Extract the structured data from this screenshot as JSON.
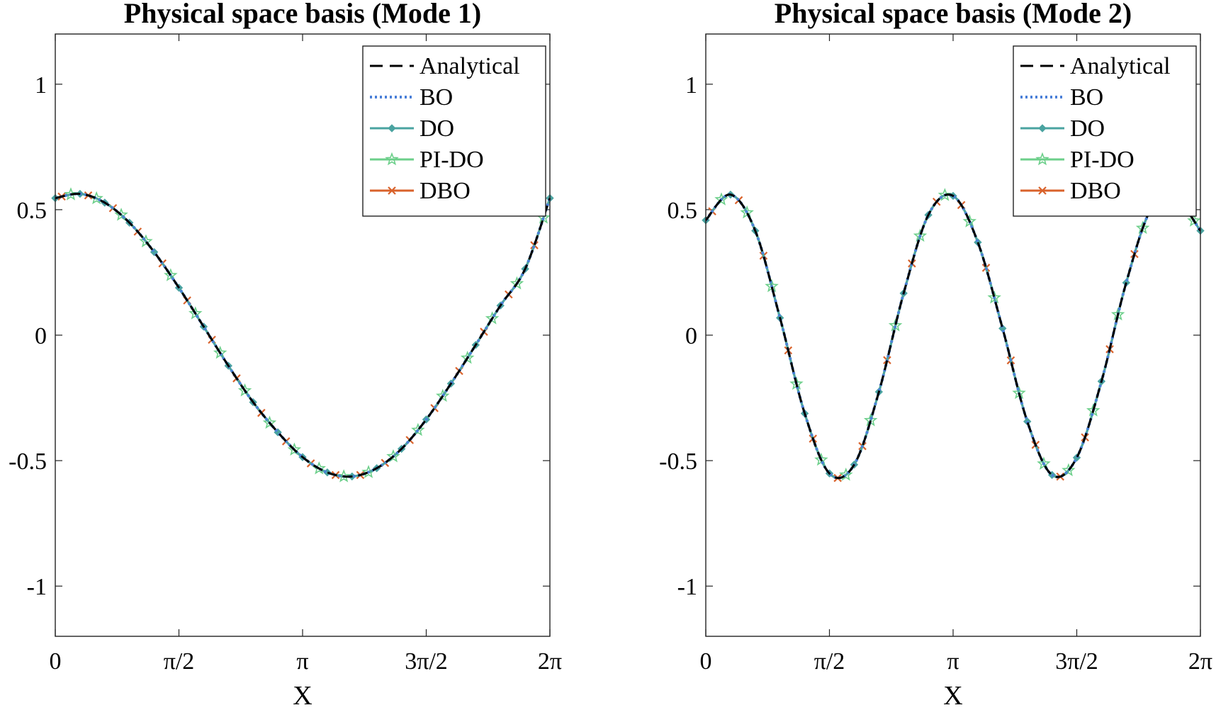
{
  "chart_data": [
    {
      "type": "line",
      "title": "Physical space basis (Mode 1)",
      "xlabel": "X",
      "ylabel": "",
      "xlim": [
        0,
        6.2832
      ],
      "ylim": [
        -1.2,
        1.2
      ],
      "xticks": [
        0,
        1.5708,
        3.1416,
        4.7124,
        6.2832
      ],
      "xtick_labels": [
        "0",
        "π/2",
        "π",
        "3π/2",
        "2π"
      ],
      "yticks": [
        -1,
        -0.5,
        0,
        0.5,
        1
      ],
      "ytick_labels": [
        "-1",
        "-0.5",
        "0",
        "0.5",
        "1"
      ],
      "grid": false,
      "legend_position": "top-right",
      "x": [
        0,
        0.3142,
        0.6283,
        0.9425,
        1.2566,
        1.5708,
        1.885,
        2.1991,
        2.5133,
        2.8274,
        3.1416,
        3.4558,
        3.7699,
        4.0841,
        4.3982,
        4.7124,
        5.0265,
        5.3407,
        5.6549,
        5.969,
        6.2832
      ],
      "series": [
        {
          "name": "Analytical",
          "color": "#000000",
          "style": "dashed",
          "marker": "none",
          "values": [
            0.546,
            0.563,
            0.528,
            0.448,
            0.331,
            0.189,
            0.034,
            -0.122,
            -0.267,
            -0.387,
            -0.486,
            -0.547,
            -0.563,
            -0.53,
            -0.453,
            -0.336,
            -0.193,
            -0.039,
            0.118,
            0.264,
            0.546
          ]
        },
        {
          "name": "BO",
          "color": "#4a7fd8",
          "style": "dotted",
          "marker": "none",
          "values": [
            0.546,
            0.563,
            0.528,
            0.448,
            0.331,
            0.189,
            0.034,
            -0.122,
            -0.267,
            -0.387,
            -0.486,
            -0.547,
            -0.563,
            -0.53,
            -0.453,
            -0.336,
            -0.193,
            -0.039,
            0.118,
            0.264,
            0.546
          ]
        },
        {
          "name": "DO",
          "color": "#4aa3a0",
          "style": "solid",
          "marker": "diamond",
          "values": [
            0.546,
            0.563,
            0.528,
            0.448,
            0.331,
            0.189,
            0.034,
            -0.122,
            -0.267,
            -0.387,
            -0.486,
            -0.547,
            -0.563,
            -0.53,
            -0.453,
            -0.336,
            -0.193,
            -0.039,
            0.118,
            0.264,
            0.546
          ]
        },
        {
          "name": "PI-DO",
          "color": "#6ccf8a",
          "style": "solid",
          "marker": "star",
          "values": [
            0.546,
            0.563,
            0.528,
            0.448,
            0.331,
            0.189,
            0.034,
            -0.122,
            -0.267,
            -0.387,
            -0.486,
            -0.547,
            -0.563,
            -0.53,
            -0.453,
            -0.336,
            -0.193,
            -0.039,
            0.118,
            0.264,
            0.546
          ]
        },
        {
          "name": "DBO",
          "color": "#d9622b",
          "style": "solid",
          "marker": "x",
          "values": [
            0.546,
            0.563,
            0.528,
            0.448,
            0.331,
            0.189,
            0.034,
            -0.122,
            -0.267,
            -0.387,
            -0.486,
            -0.547,
            -0.563,
            -0.53,
            -0.453,
            -0.336,
            -0.193,
            -0.039,
            0.118,
            0.264,
            0.546
          ]
        }
      ]
    },
    {
      "type": "line",
      "title": "Physical space basis (Mode 2)",
      "xlabel": "X",
      "ylabel": "",
      "xlim": [
        0,
        6.2832
      ],
      "ylim": [
        -1.2,
        1.2
      ],
      "xticks": [
        0,
        1.5708,
        3.1416,
        4.7124,
        6.2832
      ],
      "xtick_labels": [
        "0",
        "π/2",
        "π",
        "3π/2",
        "2π"
      ],
      "yticks": [
        -1,
        -0.5,
        0,
        0.5,
        1
      ],
      "ytick_labels": [
        "-1",
        "-0.5",
        "0",
        "0.5",
        "1"
      ],
      "grid": false,
      "legend_position": "top-right",
      "x": [
        0,
        0.3142,
        0.6283,
        0.9425,
        1.2566,
        1.5708,
        1.885,
        2.1991,
        2.5133,
        2.8274,
        3.1416,
        3.4558,
        3.7699,
        4.0841,
        4.3982,
        4.7124,
        5.0265,
        5.3407,
        5.6549,
        5.969,
        6.2832
      ],
      "series": [
        {
          "name": "Analytical",
          "color": "#000000",
          "style": "dashed",
          "marker": "none",
          "values": [
            0.458,
            0.56,
            0.416,
            0.069,
            -0.312,
            -0.551,
            -0.516,
            -0.226,
            0.167,
            0.479,
            0.555,
            0.37,
            0.027,
            -0.344,
            -0.557,
            -0.488,
            -0.184,
            0.209,
            0.502,
            0.545,
            0.416
          ]
        },
        {
          "name": "BO",
          "color": "#4a7fd8",
          "style": "dotted",
          "marker": "none",
          "values": [
            0.458,
            0.56,
            0.416,
            0.069,
            -0.312,
            -0.551,
            -0.516,
            -0.226,
            0.167,
            0.479,
            0.555,
            0.37,
            0.027,
            -0.344,
            -0.557,
            -0.488,
            -0.184,
            0.209,
            0.502,
            0.545,
            0.416
          ]
        },
        {
          "name": "DO",
          "color": "#4aa3a0",
          "style": "solid",
          "marker": "diamond",
          "values": [
            0.458,
            0.56,
            0.416,
            0.069,
            -0.312,
            -0.551,
            -0.516,
            -0.226,
            0.167,
            0.479,
            0.555,
            0.37,
            0.027,
            -0.344,
            -0.557,
            -0.488,
            -0.184,
            0.209,
            0.502,
            0.545,
            0.416
          ]
        },
        {
          "name": "PI-DO",
          "color": "#6ccf8a",
          "style": "solid",
          "marker": "star",
          "values": [
            0.458,
            0.56,
            0.416,
            0.069,
            -0.312,
            -0.551,
            -0.516,
            -0.226,
            0.167,
            0.479,
            0.555,
            0.37,
            0.027,
            -0.344,
            -0.557,
            -0.488,
            -0.184,
            0.209,
            0.502,
            0.545,
            0.416
          ]
        },
        {
          "name": "DBO",
          "color": "#d9622b",
          "style": "solid",
          "marker": "x",
          "values": [
            0.458,
            0.56,
            0.416,
            0.069,
            -0.312,
            -0.551,
            -0.516,
            -0.226,
            0.167,
            0.479,
            0.555,
            0.37,
            0.027,
            -0.344,
            -0.557,
            -0.488,
            -0.184,
            0.209,
            0.502,
            0.545,
            0.416
          ]
        }
      ]
    }
  ]
}
